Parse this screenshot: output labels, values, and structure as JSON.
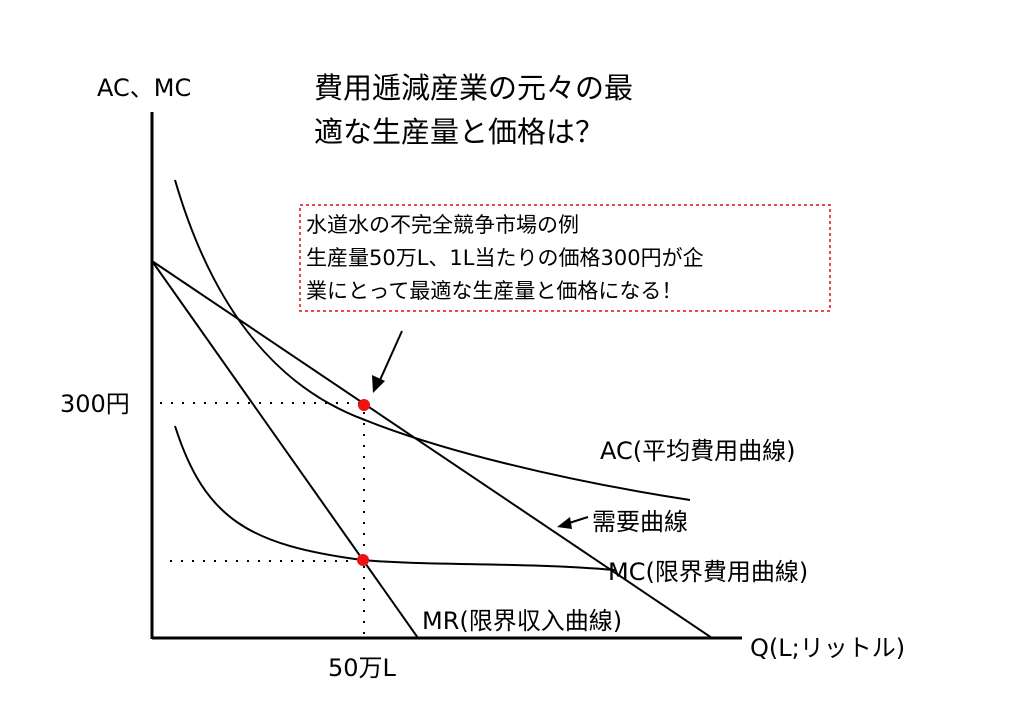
{
  "title": {
    "line1": "費用逓減産業の元々の最",
    "line2": "適な生産量と価格は？"
  },
  "axes": {
    "y_label": "AC、MC",
    "x_label": "Q(L;リットル)",
    "price_tick": "300円",
    "quantity_tick": "50万L"
  },
  "callout": {
    "line1": "水道水の不完全競争市場の例",
    "line2": "生産量50万L、1L当たりの価格300円が企",
    "line3": "業にとって最適な生産量と価格になる！"
  },
  "curves": {
    "ac": "AC(平均費用曲線)",
    "demand": "需要曲線",
    "mc": "MC(限界費用曲線)",
    "mr": "MR(限界収入曲線)"
  },
  "colors": {
    "point": "#ee1111",
    "callout_border": "#dd1111",
    "ink": "#000000"
  }
}
